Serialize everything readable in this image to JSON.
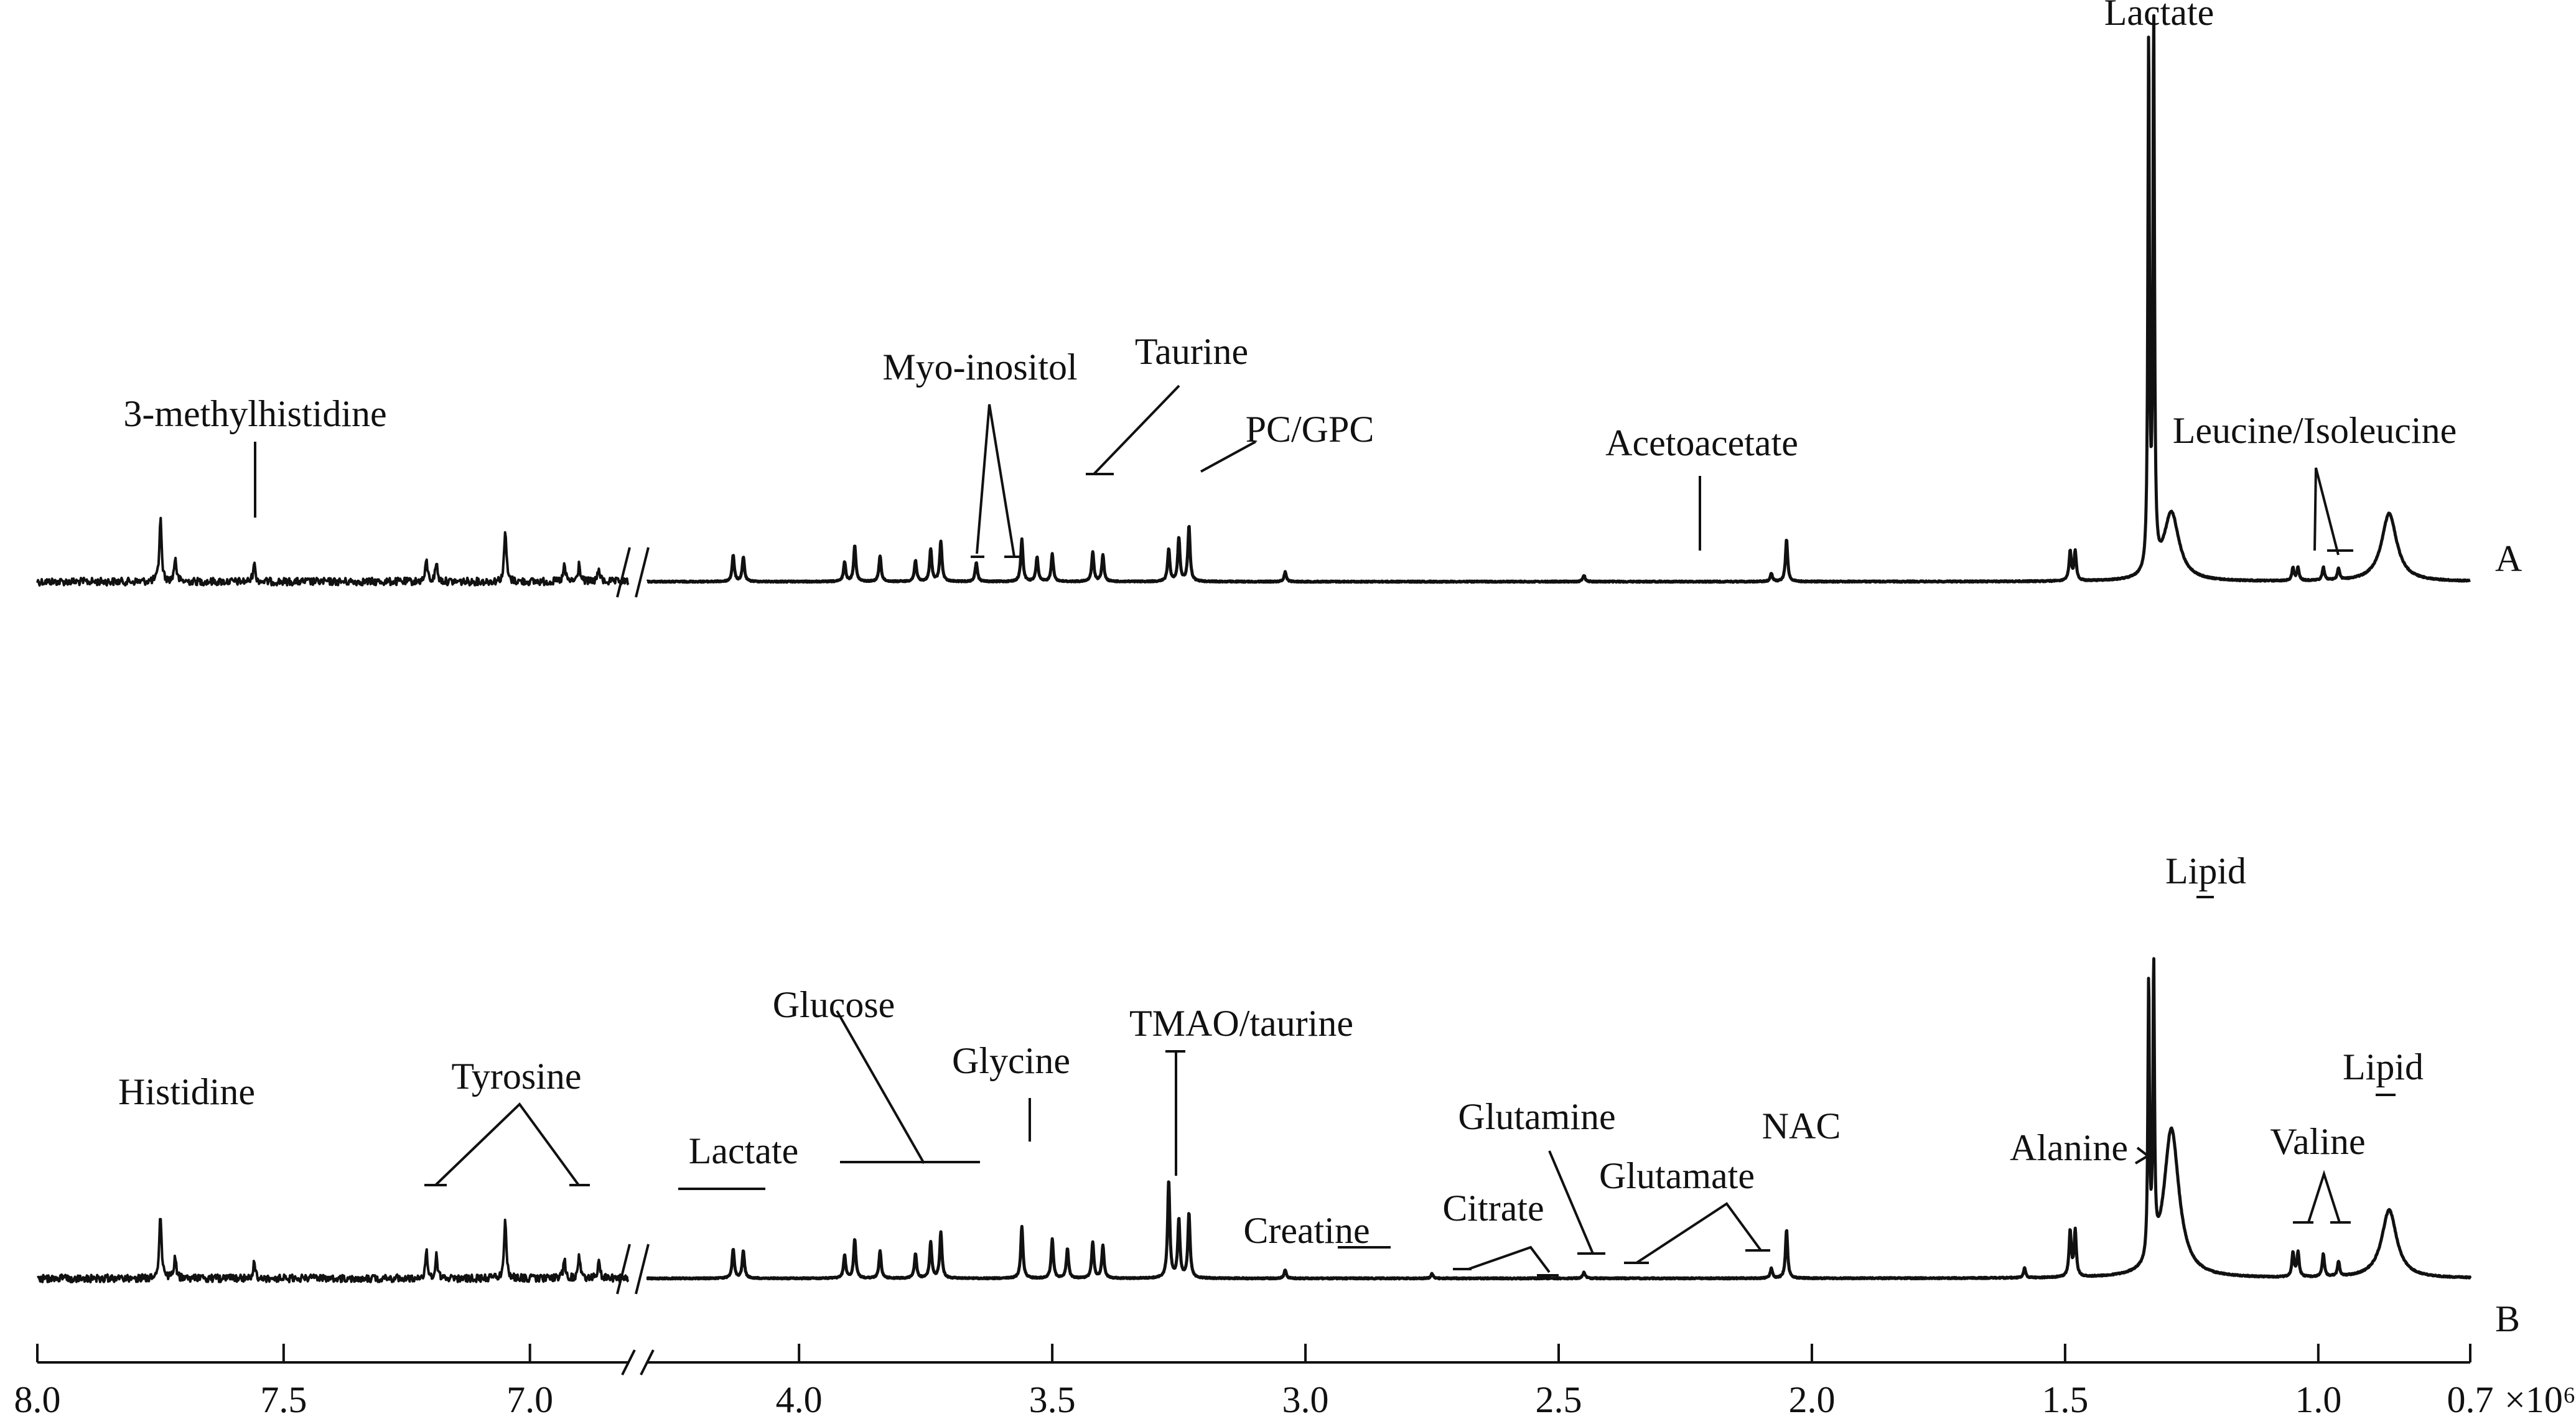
{
  "chart_data": {
    "type": "line",
    "xaxis": {
      "reversed": true,
      "broken": true,
      "break_between": [
        4.3,
        6.8
      ],
      "tick_labels": [
        "8.0",
        "7.5",
        "7.0",
        "4.0",
        "3.5",
        "3.0",
        "2.5",
        "2.0",
        "1.5",
        "1.0",
        "0.7"
      ],
      "unit_label": "×10⁶",
      "segments": [
        {
          "range": [
            8.0,
            6.8
          ],
          "ticks": [
            8.0,
            7.5,
            7.0
          ]
        },
        {
          "range": [
            4.3,
            0.7
          ],
          "ticks": [
            4.0,
            3.5,
            3.0,
            2.5,
            2.0,
            1.5,
            1.0,
            0.7
          ]
        }
      ]
    },
    "grid": false,
    "legend": "none",
    "series": [
      {
        "name": "A",
        "peaks": [
          [
            7.75,
            0.4
          ],
          [
            7.72,
            0.15
          ],
          [
            7.56,
            0.12
          ],
          [
            7.21,
            0.13
          ],
          [
            7.19,
            0.12
          ],
          [
            7.05,
            0.32
          ],
          [
            6.93,
            0.1
          ],
          [
            6.9,
            0.11
          ],
          [
            6.86,
            0.08
          ],
          [
            4.13,
            0.16
          ],
          [
            4.11,
            0.15
          ],
          [
            3.91,
            0.12
          ],
          [
            3.89,
            0.22
          ],
          [
            3.84,
            0.16
          ],
          [
            3.77,
            0.13
          ],
          [
            3.74,
            0.2
          ],
          [
            3.72,
            0.25
          ],
          [
            3.65,
            0.12
          ],
          [
            3.56,
            0.26
          ],
          [
            3.53,
            0.15
          ],
          [
            3.5,
            0.17
          ],
          [
            3.42,
            0.18
          ],
          [
            3.4,
            0.16
          ],
          [
            3.27,
            0.2
          ],
          [
            3.25,
            0.27
          ],
          [
            3.23,
            0.34
          ],
          [
            3.04,
            0.06
          ],
          [
            2.45,
            0.04
          ],
          [
            2.05,
            0.26
          ],
          [
            2.08,
            0.05
          ],
          [
            1.49,
            0.18
          ],
          [
            1.48,
            0.18
          ],
          [
            1.335,
            3.25
          ],
          [
            1.325,
            3.35
          ],
          [
            1.29,
            0.42
          ],
          [
            1.05,
            0.08
          ],
          [
            1.04,
            0.08
          ],
          [
            0.99,
            0.08
          ],
          [
            0.96,
            0.07
          ],
          [
            0.86,
            0.42
          ]
        ]
      },
      {
        "name": "B",
        "peaks": [
          [
            7.75,
            0.4
          ],
          [
            7.72,
            0.13
          ],
          [
            7.56,
            0.1
          ],
          [
            7.21,
            0.16
          ],
          [
            7.19,
            0.15
          ],
          [
            7.05,
            0.36
          ],
          [
            6.93,
            0.12
          ],
          [
            6.9,
            0.14
          ],
          [
            6.86,
            0.1
          ],
          [
            4.13,
            0.18
          ],
          [
            4.11,
            0.17
          ],
          [
            3.91,
            0.14
          ],
          [
            3.89,
            0.24
          ],
          [
            3.84,
            0.17
          ],
          [
            3.77,
            0.15
          ],
          [
            3.74,
            0.22
          ],
          [
            3.72,
            0.28
          ],
          [
            3.56,
            0.32
          ],
          [
            3.5,
            0.24
          ],
          [
            3.47,
            0.18
          ],
          [
            3.42,
            0.22
          ],
          [
            3.4,
            0.2
          ],
          [
            3.27,
            0.6
          ],
          [
            3.25,
            0.36
          ],
          [
            3.23,
            0.4
          ],
          [
            3.04,
            0.05
          ],
          [
            2.75,
            0.03
          ],
          [
            2.45,
            0.04
          ],
          [
            2.05,
            0.3
          ],
          [
            2.08,
            0.06
          ],
          [
            1.58,
            0.06
          ],
          [
            1.49,
            0.28
          ],
          [
            1.48,
            0.28
          ],
          [
            1.335,
            1.7
          ],
          [
            1.325,
            1.75
          ],
          [
            1.29,
            0.92
          ],
          [
            1.05,
            0.15
          ],
          [
            1.04,
            0.15
          ],
          [
            0.99,
            0.14
          ],
          [
            0.96,
            0.09
          ],
          [
            0.86,
            0.42
          ]
        ]
      }
    ],
    "trace_labels": [
      "A",
      "B"
    ],
    "annotations_A": [
      {
        "text": "3-methylhistidine",
        "ppm": 7.56
      },
      {
        "text": "Myo-inositol",
        "ppm": 3.62
      },
      {
        "text": "Taurine",
        "ppm": 3.42
      },
      {
        "text": "PC/GPC",
        "ppm": 3.22
      },
      {
        "text": "Acetoacetate",
        "ppm": 2.23
      },
      {
        "text": "Lactate",
        "ppm": 1.33
      },
      {
        "text": "Leucine/Isoleucine",
        "ppm": 0.96
      }
    ],
    "annotations_B": [
      {
        "text": "Histidine",
        "ppm": 7.75
      },
      {
        "text": "Tyrosine",
        "ppm": 7.05
      },
      {
        "text": "Lactate",
        "ppm": 4.12
      },
      {
        "text": "Glucose",
        "ppm": 3.75
      },
      {
        "text": "Glycine",
        "ppm": 3.56
      },
      {
        "text": "TMAO/taurine",
        "ppm": 3.27
      },
      {
        "text": "Creatine",
        "ppm": 3.04
      },
      {
        "text": "Citrate",
        "ppm": 2.65
      },
      {
        "text": "Glutamine",
        "ppm": 2.45
      },
      {
        "text": "Glutamate",
        "ppm": 2.22
      },
      {
        "text": "NAC",
        "ppm": 2.05
      },
      {
        "text": "Alanine",
        "ppm": 1.48
      },
      {
        "text": "Lipid",
        "ppm": 1.29
      },
      {
        "text": "Valine",
        "ppm": 1.0
      },
      {
        "text": "Lipid",
        "ppm": 0.86
      }
    ]
  }
}
